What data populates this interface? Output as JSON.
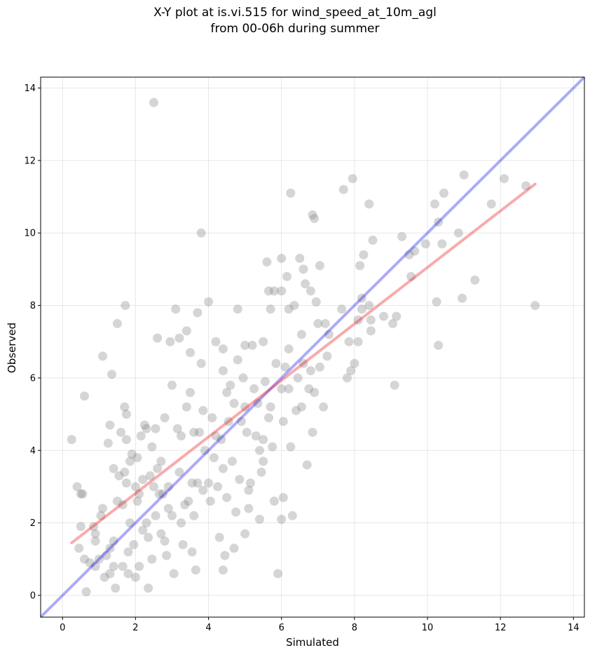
{
  "chart_data": {
    "type": "scatter",
    "title_line1": "X-Y plot at is.vi.515 for wind_speed_at_10m_agl",
    "title_line2": "from 00-06h during summer",
    "xlabel": "Simulated",
    "ylabel": "Observed",
    "xlim": [
      -0.6,
      14.3
    ],
    "ylim": [
      -0.6,
      14.3
    ],
    "xticks": [
      0,
      2,
      4,
      6,
      8,
      10,
      12,
      14
    ],
    "yticks": [
      0,
      2,
      4,
      6,
      8,
      10,
      12,
      14
    ],
    "grid": true,
    "colors": {
      "points": "#808080",
      "identity_line": "#0000ee",
      "fit_line": "#ee0000"
    },
    "identity_line": {
      "x": [
        -0.6,
        14.3
      ],
      "y": [
        -0.6,
        14.3
      ]
    },
    "fit_line": {
      "x": [
        0.25,
        12.95
      ],
      "y": [
        1.45,
        11.35
      ]
    },
    "points": [
      [
        0.25,
        4.3
      ],
      [
        0.4,
        3.0
      ],
      [
        0.45,
        1.3
      ],
      [
        0.5,
        1.9
      ],
      [
        0.5,
        2.8
      ],
      [
        0.55,
        2.8
      ],
      [
        0.6,
        5.5
      ],
      [
        0.6,
        1.0
      ],
      [
        0.65,
        0.1
      ],
      [
        0.75,
        0.9
      ],
      [
        0.85,
        1.9
      ],
      [
        0.9,
        1.7
      ],
      [
        0.9,
        1.5
      ],
      [
        0.9,
        0.8
      ],
      [
        1.0,
        1.0
      ],
      [
        1.05,
        2.2
      ],
      [
        1.1,
        6.6
      ],
      [
        1.1,
        2.4
      ],
      [
        1.15,
        0.5
      ],
      [
        1.2,
        1.1
      ],
      [
        1.25,
        4.2
      ],
      [
        1.3,
        4.7
      ],
      [
        1.3,
        0.6
      ],
      [
        1.3,
        1.3
      ],
      [
        1.35,
        6.1
      ],
      [
        1.4,
        0.8
      ],
      [
        1.4,
        3.5
      ],
      [
        1.4,
        1.5
      ],
      [
        1.45,
        0.2
      ],
      [
        1.5,
        7.5
      ],
      [
        1.5,
        2.6
      ],
      [
        1.55,
        3.3
      ],
      [
        1.6,
        4.5
      ],
      [
        1.65,
        2.5
      ],
      [
        1.65,
        0.8
      ],
      [
        1.7,
        5.2
      ],
      [
        1.7,
        3.4
      ],
      [
        1.72,
        8.0
      ],
      [
        1.75,
        5.0
      ],
      [
        1.75,
        4.3
      ],
      [
        1.75,
        3.1
      ],
      [
        1.8,
        1.2
      ],
      [
        1.8,
        0.6
      ],
      [
        1.85,
        2.0
      ],
      [
        1.85,
        3.7
      ],
      [
        1.9,
        3.9
      ],
      [
        1.95,
        1.4
      ],
      [
        2.0,
        3.0
      ],
      [
        2.0,
        0.5
      ],
      [
        2.05,
        2.6
      ],
      [
        2.05,
        3.8
      ],
      [
        2.1,
        0.8
      ],
      [
        2.1,
        2.8
      ],
      [
        2.15,
        4.4
      ],
      [
        2.2,
        1.8
      ],
      [
        2.2,
        3.2
      ],
      [
        2.25,
        4.7
      ],
      [
        2.3,
        2.0
      ],
      [
        2.3,
        4.6
      ],
      [
        2.35,
        0.2
      ],
      [
        2.35,
        1.6
      ],
      [
        2.4,
        3.3
      ],
      [
        2.45,
        1.0
      ],
      [
        2.45,
        4.1
      ],
      [
        2.5,
        13.6
      ],
      [
        2.5,
        3.0
      ],
      [
        2.55,
        2.2
      ],
      [
        2.55,
        4.6
      ],
      [
        2.6,
        7.1
      ],
      [
        2.6,
        3.5
      ],
      [
        2.65,
        2.8
      ],
      [
        2.7,
        1.7
      ],
      [
        2.7,
        3.7
      ],
      [
        2.75,
        2.8
      ],
      [
        2.8,
        1.5
      ],
      [
        2.8,
        4.9
      ],
      [
        2.85,
        1.1
      ],
      [
        2.9,
        3.0
      ],
      [
        2.9,
        2.4
      ],
      [
        2.95,
        7.0
      ],
      [
        3.0,
        5.8
      ],
      [
        3.0,
        2.2
      ],
      [
        3.05,
        0.6
      ],
      [
        3.1,
        7.9
      ],
      [
        3.15,
        4.6
      ],
      [
        3.2,
        7.1
      ],
      [
        3.2,
        3.4
      ],
      [
        3.25,
        4.4
      ],
      [
        3.25,
        2.0
      ],
      [
        3.3,
        1.4
      ],
      [
        3.35,
        2.5
      ],
      [
        3.4,
        7.3
      ],
      [
        3.4,
        5.2
      ],
      [
        3.45,
        2.6
      ],
      [
        3.5,
        6.7
      ],
      [
        3.5,
        5.6
      ],
      [
        3.55,
        3.1
      ],
      [
        3.55,
        1.2
      ],
      [
        3.6,
        4.5
      ],
      [
        3.6,
        2.2
      ],
      [
        3.65,
        0.7
      ],
      [
        3.7,
        7.8
      ],
      [
        3.7,
        3.1
      ],
      [
        3.75,
        4.5
      ],
      [
        3.8,
        10.0
      ],
      [
        3.8,
        6.4
      ],
      [
        3.85,
        5.1
      ],
      [
        3.85,
        2.9
      ],
      [
        3.9,
        4.0
      ],
      [
        4.0,
        3.1
      ],
      [
        4.0,
        8.1
      ],
      [
        4.05,
        2.6
      ],
      [
        4.1,
        4.9
      ],
      [
        4.15,
        3.8
      ],
      [
        4.2,
        7.0
      ],
      [
        4.2,
        4.4
      ],
      [
        4.25,
        3.0
      ],
      [
        4.3,
        1.6
      ],
      [
        4.35,
        4.3
      ],
      [
        4.4,
        6.2
      ],
      [
        4.4,
        6.8
      ],
      [
        4.4,
        3.5
      ],
      [
        4.4,
        0.7
      ],
      [
        4.45,
        1.1
      ],
      [
        4.5,
        5.6
      ],
      [
        4.5,
        2.7
      ],
      [
        4.55,
        4.8
      ],
      [
        4.6,
        5.8
      ],
      [
        4.65,
        3.7
      ],
      [
        4.7,
        5.3
      ],
      [
        4.7,
        1.3
      ],
      [
        4.75,
        2.3
      ],
      [
        4.8,
        7.9
      ],
      [
        4.8,
        6.5
      ],
      [
        4.85,
        3.2
      ],
      [
        4.9,
        4.8
      ],
      [
        4.95,
        6.0
      ],
      [
        5.0,
        6.9
      ],
      [
        5.0,
        5.2
      ],
      [
        5.0,
        1.7
      ],
      [
        5.05,
        4.5
      ],
      [
        5.1,
        2.9
      ],
      [
        5.1,
        2.4
      ],
      [
        5.15,
        3.1
      ],
      [
        5.2,
        6.9
      ],
      [
        5.25,
        5.7
      ],
      [
        5.3,
        4.4
      ],
      [
        5.35,
        5.3
      ],
      [
        5.4,
        4.0
      ],
      [
        5.4,
        2.1
      ],
      [
        5.45,
        3.4
      ],
      [
        5.5,
        7.0
      ],
      [
        5.5,
        4.3
      ],
      [
        5.5,
        3.7
      ],
      [
        5.55,
        5.9
      ],
      [
        5.6,
        9.2
      ],
      [
        5.65,
        4.9
      ],
      [
        5.65,
        8.4
      ],
      [
        5.7,
        7.9
      ],
      [
        5.7,
        5.2
      ],
      [
        5.75,
        4.1
      ],
      [
        5.8,
        8.4
      ],
      [
        5.8,
        2.6
      ],
      [
        5.85,
        6.4
      ],
      [
        5.9,
        0.6
      ],
      [
        6.0,
        9.3
      ],
      [
        6.0,
        8.4
      ],
      [
        6.0,
        5.7
      ],
      [
        6.0,
        2.1
      ],
      [
        6.05,
        4.8
      ],
      [
        6.05,
        2.7
      ],
      [
        6.1,
        6.3
      ],
      [
        6.15,
        8.8
      ],
      [
        6.2,
        7.9
      ],
      [
        6.2,
        6.8
      ],
      [
        6.2,
        5.7
      ],
      [
        6.25,
        11.1
      ],
      [
        6.25,
        4.1
      ],
      [
        6.3,
        2.2
      ],
      [
        6.35,
        8.0
      ],
      [
        6.4,
        5.1
      ],
      [
        6.45,
        6.0
      ],
      [
        6.5,
        9.3
      ],
      [
        6.55,
        7.2
      ],
      [
        6.55,
        5.2
      ],
      [
        6.6,
        9.0
      ],
      [
        6.6,
        6.4
      ],
      [
        6.65,
        8.6
      ],
      [
        6.7,
        3.6
      ],
      [
        6.75,
        5.7
      ],
      [
        6.8,
        8.4
      ],
      [
        6.8,
        6.2
      ],
      [
        6.85,
        10.5
      ],
      [
        6.85,
        4.5
      ],
      [
        6.9,
        10.4
      ],
      [
        6.9,
        5.6
      ],
      [
        6.95,
        8.1
      ],
      [
        7.0,
        7.5
      ],
      [
        7.05,
        9.1
      ],
      [
        7.05,
        6.3
      ],
      [
        7.15,
        5.2
      ],
      [
        7.2,
        7.5
      ],
      [
        7.25,
        6.6
      ],
      [
        7.3,
        7.2
      ],
      [
        7.65,
        7.9
      ],
      [
        7.7,
        11.2
      ],
      [
        7.8,
        6.0
      ],
      [
        7.85,
        7.0
      ],
      [
        7.9,
        6.2
      ],
      [
        7.95,
        11.5
      ],
      [
        8.0,
        6.4
      ],
      [
        8.1,
        7.0
      ],
      [
        8.1,
        7.6
      ],
      [
        8.15,
        9.1
      ],
      [
        8.2,
        8.2
      ],
      [
        8.2,
        7.9
      ],
      [
        8.25,
        9.4
      ],
      [
        8.4,
        10.8
      ],
      [
        8.4,
        8.0
      ],
      [
        8.45,
        7.3
      ],
      [
        8.45,
        7.6
      ],
      [
        8.5,
        9.8
      ],
      [
        8.8,
        7.7
      ],
      [
        9.05,
        7.5
      ],
      [
        9.1,
        5.8
      ],
      [
        9.15,
        7.7
      ],
      [
        9.3,
        9.9
      ],
      [
        9.5,
        9.4
      ],
      [
        9.55,
        8.8
      ],
      [
        9.65,
        9.5
      ],
      [
        9.95,
        9.7
      ],
      [
        10.2,
        10.8
      ],
      [
        10.25,
        8.1
      ],
      [
        10.3,
        6.9
      ],
      [
        10.3,
        10.3
      ],
      [
        10.4,
        9.7
      ],
      [
        10.45,
        11.1
      ],
      [
        10.85,
        10.0
      ],
      [
        10.95,
        8.2
      ],
      [
        11.0,
        11.6
      ],
      [
        11.3,
        8.7
      ],
      [
        11.75,
        10.8
      ],
      [
        12.1,
        11.5
      ],
      [
        12.7,
        11.3
      ],
      [
        12.95,
        8.0
      ]
    ]
  }
}
